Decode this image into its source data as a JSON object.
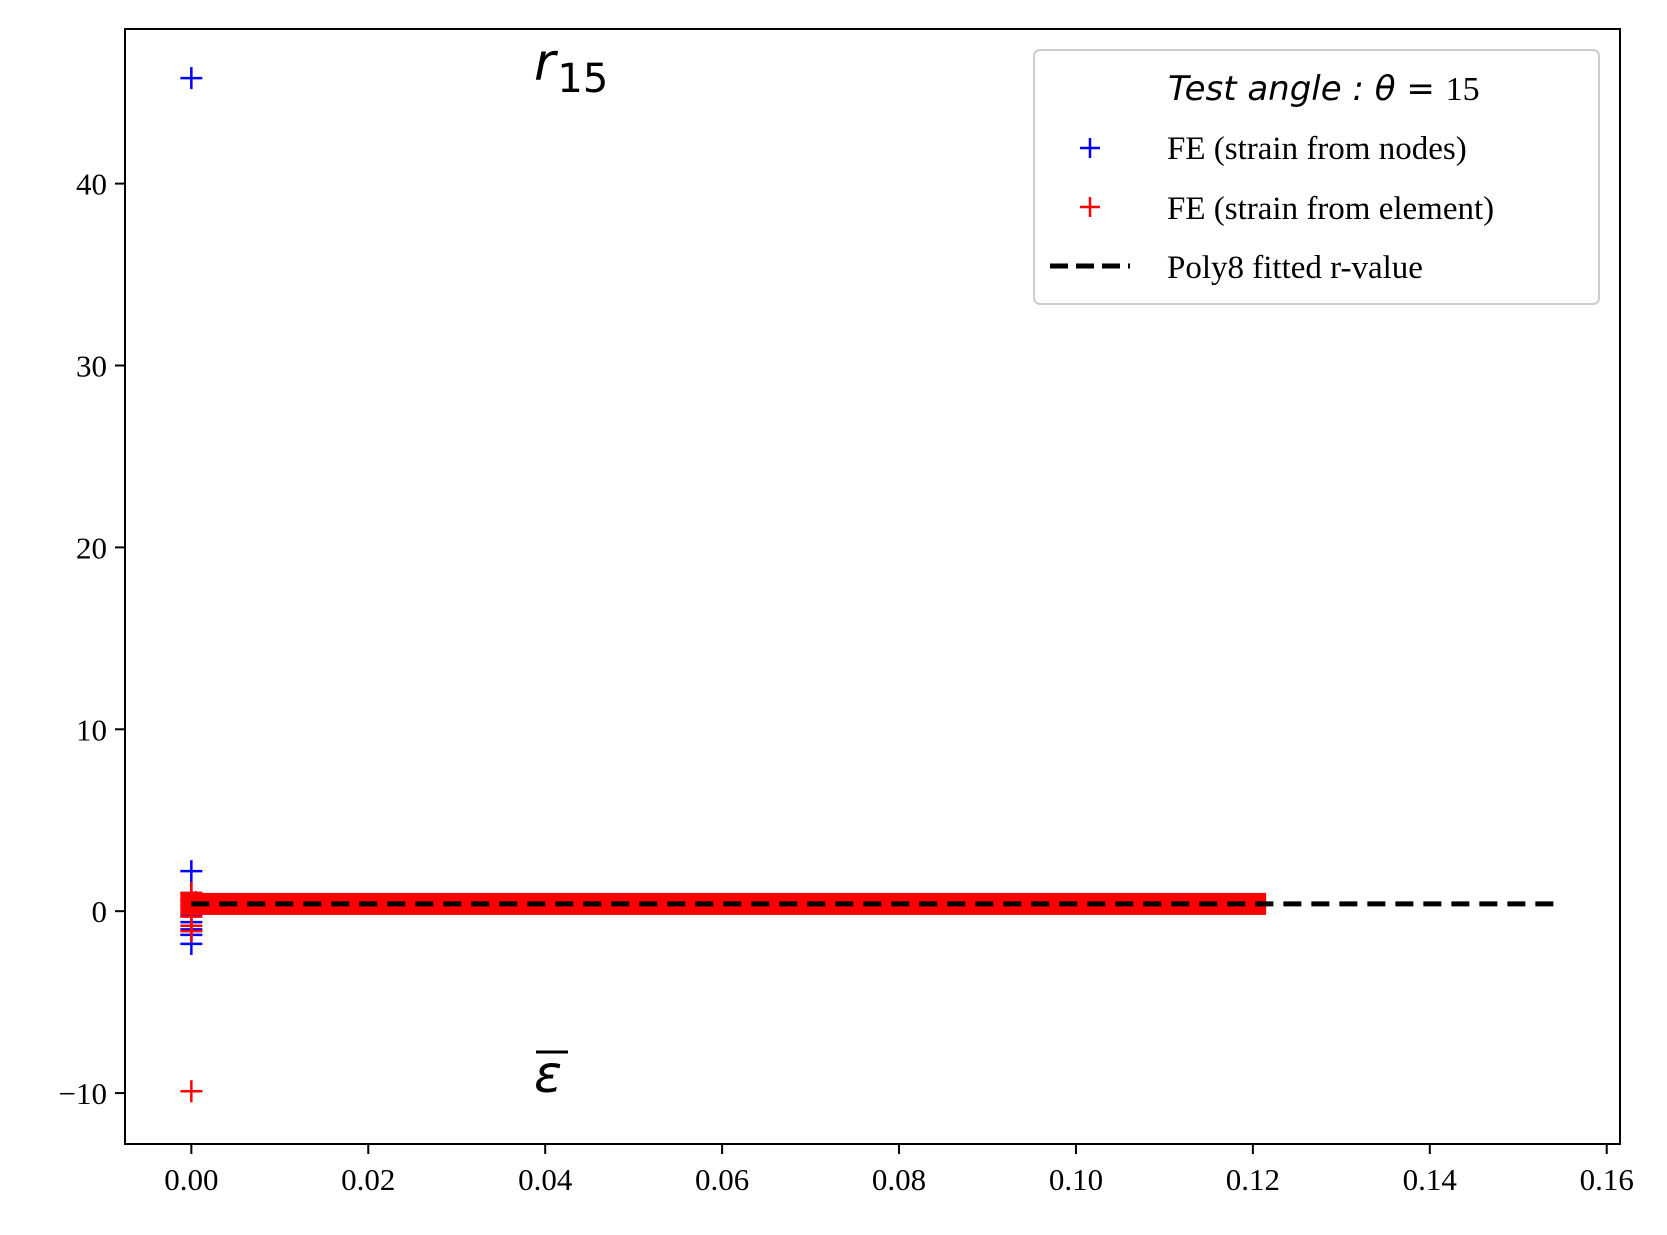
{
  "chart_data": {
    "type": "scatter",
    "title": "",
    "xlabel": "",
    "ylabel": "",
    "xlim": [
      -0.0075,
      0.1615
    ],
    "ylim": [
      -12.8,
      48.5
    ],
    "xticks": [
      0.0,
      0.02,
      0.04,
      0.06,
      0.08,
      0.1,
      0.12,
      0.14,
      0.16
    ],
    "xtick_labels": [
      "0.00",
      "0.02",
      "0.04",
      "0.06",
      "0.08",
      "0.10",
      "0.12",
      "0.14",
      "0.16"
    ],
    "yticks": [
      -10,
      0,
      10,
      20,
      30,
      40
    ],
    "ytick_labels": [
      "−10",
      "0",
      "10",
      "20",
      "30",
      "40"
    ],
    "grid": false,
    "legend_position": "top-right",
    "annotations": {
      "top": {
        "symbol": "r",
        "subscript": "15",
        "x": 0.0395,
        "y": 45.8
      },
      "bottom": {
        "symbol": "ε",
        "x": 0.0395,
        "y": -9.9
      }
    },
    "legend": {
      "title_text": "Test  angle : θ = ",
      "title_value": "15",
      "entries": [
        {
          "label": "FE (strain from nodes)",
          "marker": "+",
          "color": "#0000ff"
        },
        {
          "label": "FE (strain from element)",
          "marker": "+",
          "color": "#ff0000"
        },
        {
          "label": "Poly8 fitted r-value",
          "marker": "dashed-line",
          "color": "#000000"
        }
      ]
    },
    "series": [
      {
        "name": "FE (strain from nodes)",
        "kind": "markers",
        "marker": "+",
        "color": "#0000ff",
        "points": [
          [
            0.0,
            45.8
          ],
          [
            0.0,
            2.2
          ],
          [
            0.0,
            1.0
          ],
          [
            0.0,
            0.6
          ],
          [
            0.0,
            -0.2
          ],
          [
            0.0,
            -0.6
          ],
          [
            0.0,
            -1.0
          ],
          [
            0.0,
            -1.3
          ],
          [
            0.0,
            -1.8
          ]
        ]
      },
      {
        "name": "FE (strain from element)",
        "kind": "markers",
        "marker": "+",
        "color": "#ff0000",
        "points": [
          [
            0.0,
            -9.9
          ],
          [
            0.0,
            1.0
          ],
          [
            0.0,
            0.3
          ],
          [
            0.0,
            -0.3
          ],
          [
            0.0,
            -0.8
          ],
          [
            0.0,
            -1.1
          ],
          [
            0.0005,
            0.5
          ],
          [
            0.0008,
            0.4
          ]
        ],
        "dense_band": {
          "x_start": 0.0,
          "x_end": 0.1215,
          "y": 0.4
        }
      },
      {
        "name": "Poly8 fitted r-value",
        "kind": "line",
        "style": "dashed",
        "color": "#000000",
        "x": [
          0.0,
          0.154
        ],
        "y": [
          0.4,
          0.4
        ]
      }
    ]
  }
}
